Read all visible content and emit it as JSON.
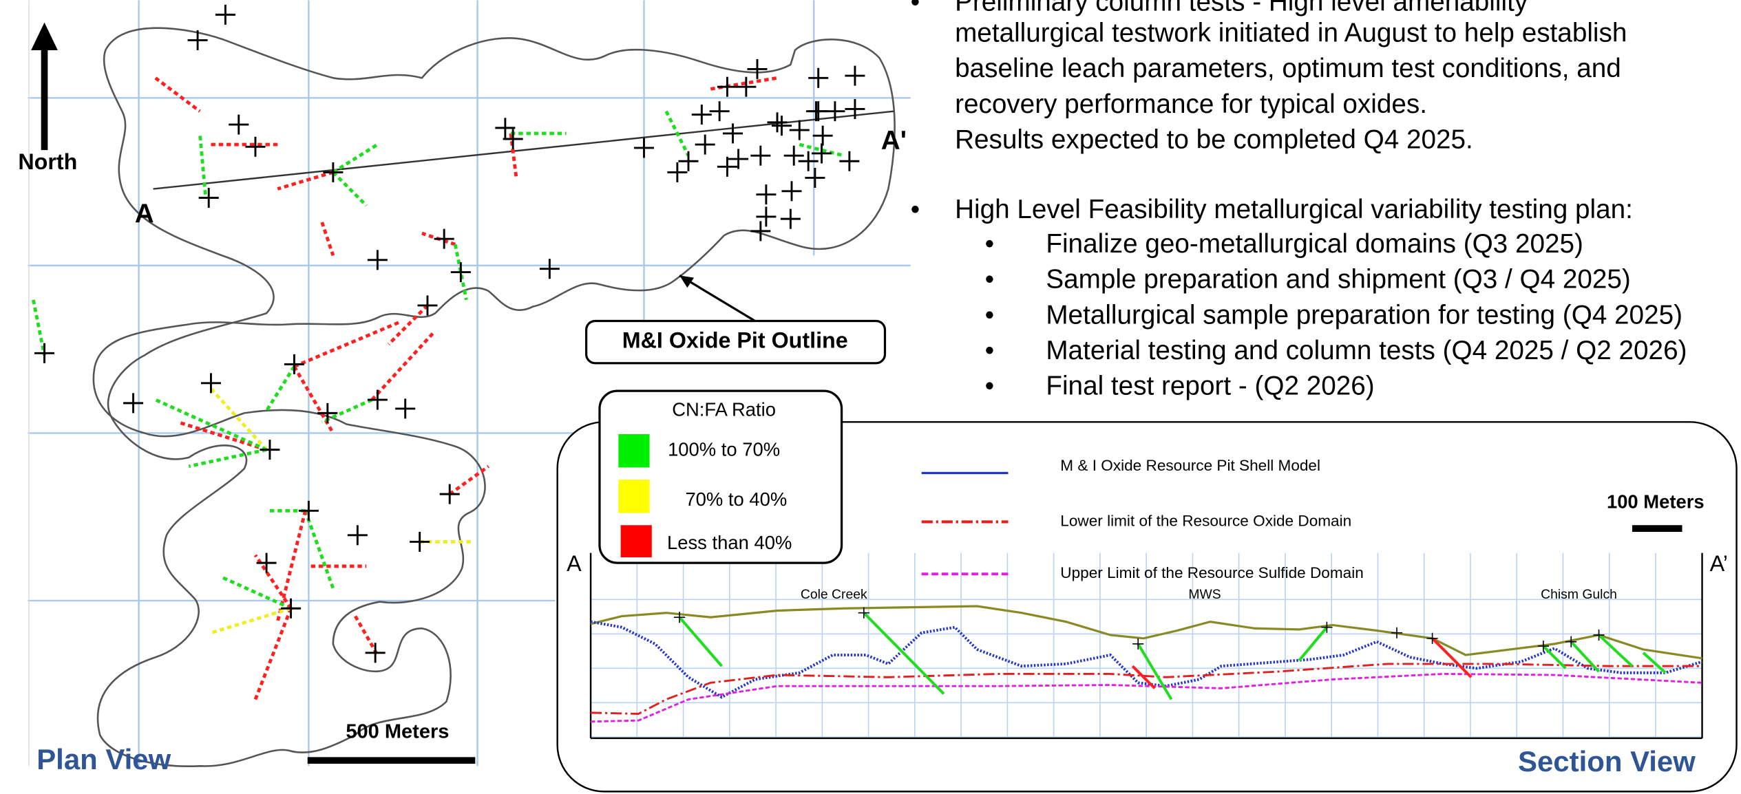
{
  "plan": {
    "north": "North",
    "a": "A",
    "a_prime": "A'",
    "pit_outline": "M&I Oxide Pit Outline",
    "scale": "500 Meters",
    "title": "Plan View"
  },
  "notes": {
    "bullet1": [
      "Preliminary column tests - High level amenability",
      "metallurgical testwork initiated in August to help establish",
      "baseline leach parameters, optimum test conditions, and",
      "recovery performance for typical oxides.",
      "Results expected to be completed Q4 2025."
    ],
    "bullet2": "High Level Feasibility metallurgical variability testing plan:",
    "subitems": [
      "Finalize geo-metallurgical domains (Q3 2025)",
      "Sample preparation and shipment (Q3 / Q4 2025)",
      "Metallurgical sample preparation for testing (Q4 2025)",
      "Material testing and column tests (Q4 2025 / Q2 2026)",
      "Final test report - (Q2 2026)"
    ]
  },
  "legend": {
    "title": "CN:FA Ratio",
    "items": [
      "100% to 70%",
      "70% to 40%",
      "Less than 40%"
    ]
  },
  "section": {
    "legend": [
      "M & I Oxide Resource Pit Shell Model",
      "Lower limit of the Resource Oxide Domain",
      "Upper Limit of  the Resource Sulfide Domain"
    ],
    "scale": "100 Meters",
    "a": "A",
    "a_prime": "A’",
    "places": [
      "Cole Creek",
      "MWS",
      "Chism Gulch"
    ],
    "title": "Section View"
  }
}
